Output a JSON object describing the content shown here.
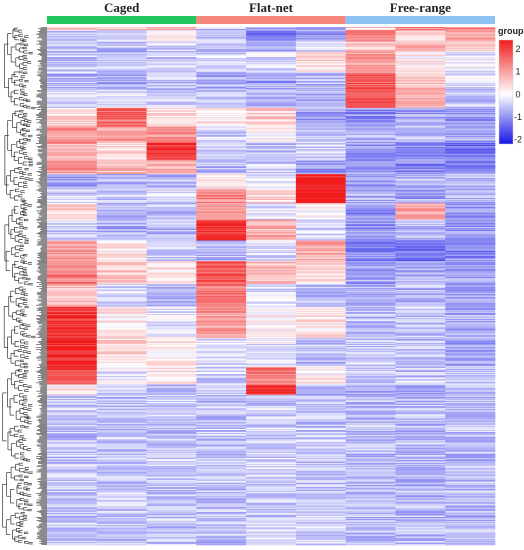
{
  "chart_data": {
    "type": "heatmap",
    "annotation": {
      "groups": [
        {
          "name": "Caged",
          "color": "#21c45d",
          "columns": 3
        },
        {
          "name": "Flat-net",
          "color": "#f5877f",
          "columns": 3
        },
        {
          "name": "Free-range",
          "color": "#8ec2f2",
          "columns": 3
        }
      ]
    },
    "legend": {
      "title": "group",
      "placement": "top-right",
      "ticks": [
        2,
        1,
        0,
        -1,
        -2
      ],
      "range": [
        -2.2,
        2.4
      ],
      "colors": {
        "low": "#1515e6",
        "mid": "#ffffff",
        "high": "#f01c1c"
      }
    },
    "n_rows": 500,
    "dendrogram": "rows",
    "blocks": [
      {
        "rows": [
          0,
          3
        ],
        "values": [
          0.3,
          0.6,
          0.9,
          -0.6,
          -0.7,
          -0.9,
          0.5,
          1.2,
          1.4
        ]
      },
      {
        "rows": [
          3,
          14
        ],
        "values": [
          -0.5,
          -0.3,
          0.2,
          -0.6,
          -1.2,
          -0.8,
          1.2,
          0.5,
          0.8
        ]
      },
      {
        "rows": [
          14,
          24
        ],
        "values": [
          -0.4,
          -0.6,
          -0.4,
          -0.5,
          -0.8,
          -0.2,
          0.6,
          0.8,
          0.5
        ]
      },
      {
        "rows": [
          24,
          44
        ],
        "values": [
          -0.5,
          -0.5,
          -0.4,
          -0.4,
          -0.3,
          0.3,
          1.0,
          0.2,
          -0.2
        ]
      },
      {
        "rows": [
          44,
          60
        ],
        "values": [
          -0.6,
          -0.8,
          -0.5,
          -0.7,
          -0.8,
          -0.6,
          1.7,
          0.7,
          -0.3
        ]
      },
      {
        "rows": [
          60,
          78
        ],
        "values": [
          -0.3,
          -0.2,
          -0.4,
          -0.5,
          -0.6,
          -0.7,
          1.8,
          0.9,
          -0.5
        ]
      },
      {
        "rows": [
          78,
          96
        ],
        "values": [
          0.5,
          1.5,
          0.3,
          0.2,
          0.5,
          -0.8,
          -1.0,
          -0.8,
          -0.9
        ]
      },
      {
        "rows": [
          96,
          112
        ],
        "values": [
          1.0,
          0.9,
          1.1,
          -0.4,
          0.1,
          -0.5,
          -0.7,
          -0.6,
          -0.8
        ]
      },
      {
        "rows": [
          112,
          128
        ],
        "values": [
          0.8,
          0.3,
          2.0,
          -0.3,
          -0.5,
          -0.4,
          -0.9,
          -1.0,
          -1.2
        ]
      },
      {
        "rows": [
          128,
          142
        ],
        "values": [
          1.0,
          0.6,
          0.7,
          -0.6,
          -0.4,
          -0.8,
          -1.0,
          -1.1,
          -1.0
        ]
      },
      {
        "rows": [
          142,
          156
        ],
        "values": [
          -0.8,
          -0.7,
          -0.6,
          0.2,
          -0.2,
          2.3,
          -0.9,
          -0.7,
          -0.7
        ]
      },
      {
        "rows": [
          156,
          170
        ],
        "values": [
          -0.5,
          -0.4,
          -0.3,
          1.2,
          0.4,
          2.3,
          -0.6,
          -0.8,
          -0.7
        ]
      },
      {
        "rows": [
          170,
          186
        ],
        "values": [
          0.4,
          -0.6,
          -0.5,
          1.0,
          -0.3,
          0.1,
          -1.0,
          1.0,
          -0.9
        ]
      },
      {
        "rows": [
          186,
          206
        ],
        "values": [
          -0.4,
          -0.7,
          -0.6,
          2.1,
          0.8,
          -0.4,
          -0.9,
          -0.6,
          -0.9
        ]
      },
      {
        "rows": [
          206,
          226
        ],
        "values": [
          1.0,
          0.3,
          -0.5,
          -0.7,
          -0.3,
          0.9,
          -1.0,
          -1.2,
          -1.1
        ]
      },
      {
        "rows": [
          226,
          248
        ],
        "values": [
          1.2,
          0.5,
          0.3,
          1.6,
          0.6,
          0.4,
          -0.8,
          -0.7,
          -0.9
        ]
      },
      {
        "rows": [
          248,
          270
        ],
        "values": [
          0.6,
          -0.3,
          -0.6,
          1.4,
          -0.3,
          -0.6,
          -0.7,
          -0.6,
          -0.8
        ]
      },
      {
        "rows": [
          270,
          300
        ],
        "values": [
          2.0,
          0.2,
          -0.2,
          1.0,
          0.1,
          0.3,
          -0.6,
          -0.5,
          -0.7
        ]
      },
      {
        "rows": [
          300,
          328
        ],
        "values": [
          2.2,
          0.4,
          0.2,
          -0.3,
          -0.2,
          -0.5,
          -0.5,
          -0.6,
          -0.7
        ]
      },
      {
        "rows": [
          328,
          345
        ],
        "values": [
          1.8,
          -0.2,
          0.3,
          -0.4,
          1.3,
          0.2,
          -0.6,
          -0.5,
          -0.6
        ]
      },
      {
        "rows": [
          345,
          355
        ],
        "values": [
          0.2,
          -0.4,
          -0.5,
          -0.4,
          2.1,
          -0.6,
          -0.7,
          -0.8,
          -0.7
        ]
      }
    ]
  }
}
